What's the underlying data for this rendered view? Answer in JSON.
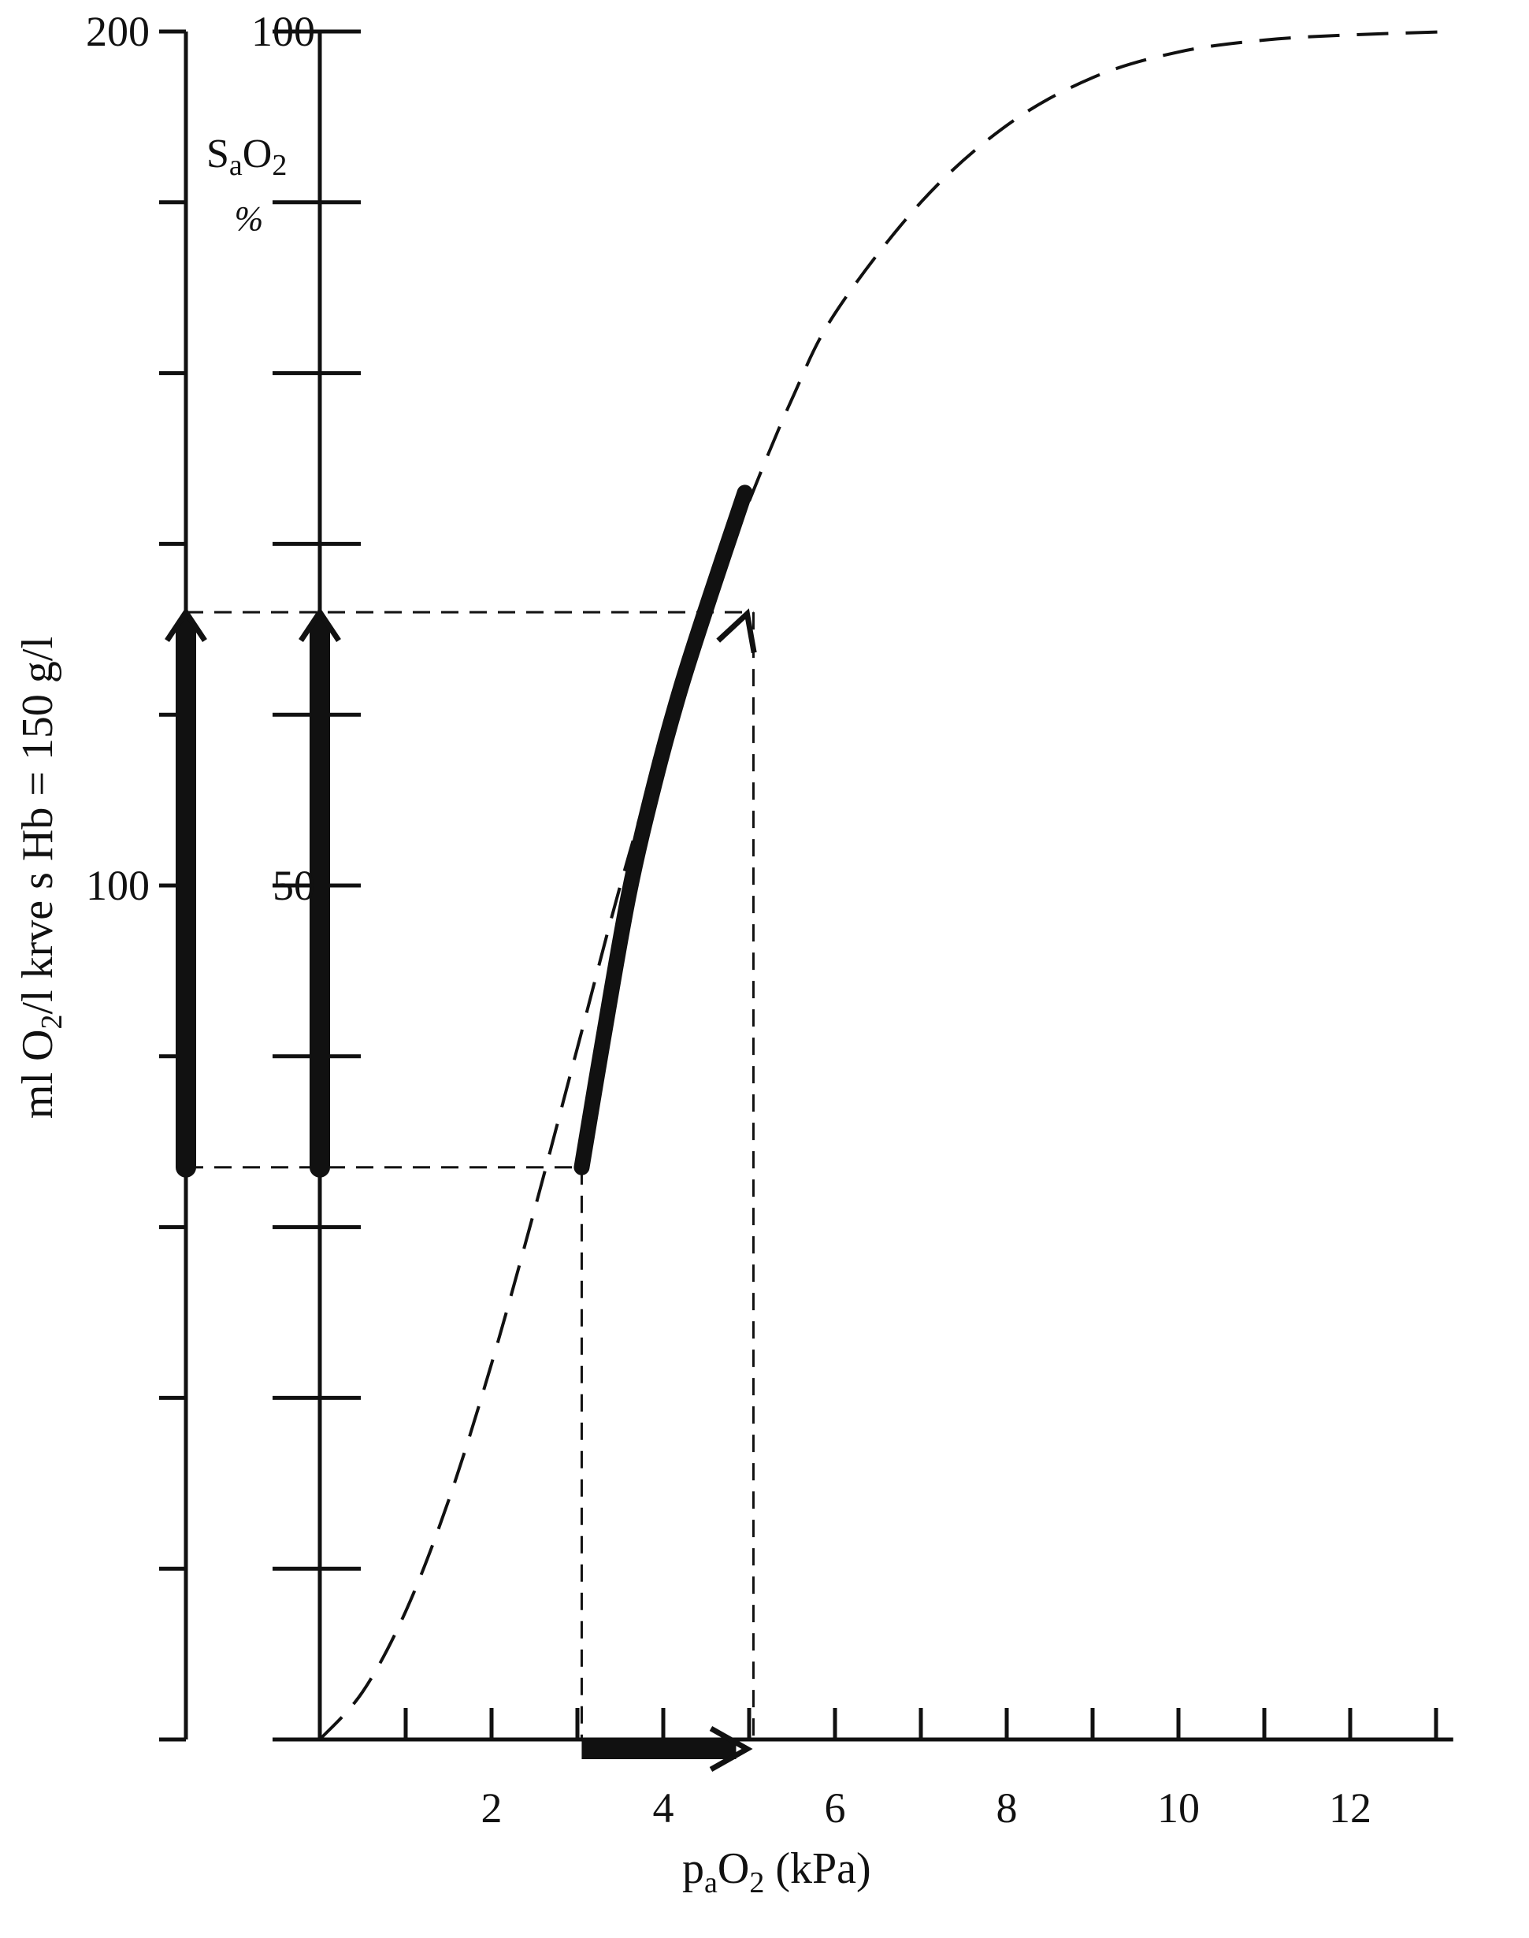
{
  "chart_data": {
    "type": "line",
    "x_axis": {
      "label_base": "p",
      "label_sub1": "a",
      "label_mid": "O",
      "label_sub2": "2",
      "label_tail": " (kPa)",
      "range": [
        0,
        13.2
      ],
      "ticks": [
        1,
        2,
        3,
        4,
        5,
        6,
        7,
        8,
        9,
        10,
        11,
        12,
        13
      ],
      "tick_labels": [
        {
          "x": 2,
          "text": "2"
        },
        {
          "x": 4,
          "text": "4"
        },
        {
          "x": 6,
          "text": "6"
        },
        {
          "x": 8,
          "text": "8"
        },
        {
          "x": 10,
          "text": "10"
        },
        {
          "x": 12,
          "text": "12"
        }
      ]
    },
    "y_axis_left": {
      "label_pre": "ml O",
      "label_sub": "2",
      "label_post": "/l krve s Hb = 150 g/l",
      "range": [
        0,
        200
      ],
      "ticks": [
        0,
        20,
        40,
        60,
        80,
        100,
        120,
        140,
        160,
        180,
        200
      ],
      "tick_labels": [
        {
          "y": 200,
          "text": "200"
        },
        {
          "y": 100,
          "text": "100"
        }
      ]
    },
    "y_axis_right": {
      "label_main": "S",
      "label_sub": "a",
      "label_post": "O",
      "label_sub2": "2",
      "unit": "%",
      "range": [
        0,
        100
      ],
      "ticks": [
        0,
        10,
        20,
        30,
        40,
        50,
        60,
        70,
        80,
        90,
        100
      ],
      "tick_labels": [
        {
          "y": 100,
          "text": "100"
        },
        {
          "y": 50,
          "text": "50"
        }
      ]
    },
    "series": [
      {
        "style": "dashed",
        "points": [
          [
            0,
            0
          ],
          [
            0.5,
            2.8
          ],
          [
            1,
            7.5
          ],
          [
            1.5,
            14
          ],
          [
            2,
            22
          ],
          [
            2.5,
            31
          ],
          [
            3,
            40.5
          ],
          [
            3.5,
            50
          ],
          [
            4,
            58.5
          ],
          [
            4.5,
            66
          ],
          [
            5,
            72.5
          ],
          [
            5.5,
            78.5
          ],
          [
            6,
            83.5
          ],
          [
            7,
            90
          ],
          [
            8,
            94.5
          ],
          [
            9,
            97.3
          ],
          [
            10,
            98.8
          ],
          [
            11,
            99.5
          ],
          [
            12,
            99.8
          ],
          [
            13.2,
            100
          ]
        ]
      },
      {
        "style": "bold",
        "points": [
          [
            3.05,
            33.5
          ],
          [
            3.3,
            41
          ],
          [
            3.6,
            49.5
          ],
          [
            3.9,
            56
          ],
          [
            4.2,
            61.5
          ],
          [
            4.55,
            67
          ],
          [
            4.95,
            73
          ]
        ]
      }
    ],
    "guides": {
      "low": {
        "x": 3.05,
        "y_percent": 33.5,
        "y_ml": 67
      },
      "high": {
        "x": 5.05,
        "y_percent": 66,
        "y_ml": 132
      }
    },
    "arrows": [
      {
        "axis": "x",
        "from": 3.05,
        "to": 5.05
      },
      {
        "axis": "y_left",
        "from": 67,
        "to": 132
      },
      {
        "axis": "y_right",
        "from": 33.5,
        "to": 66
      }
    ],
    "grid": false,
    "legend": "none"
  }
}
